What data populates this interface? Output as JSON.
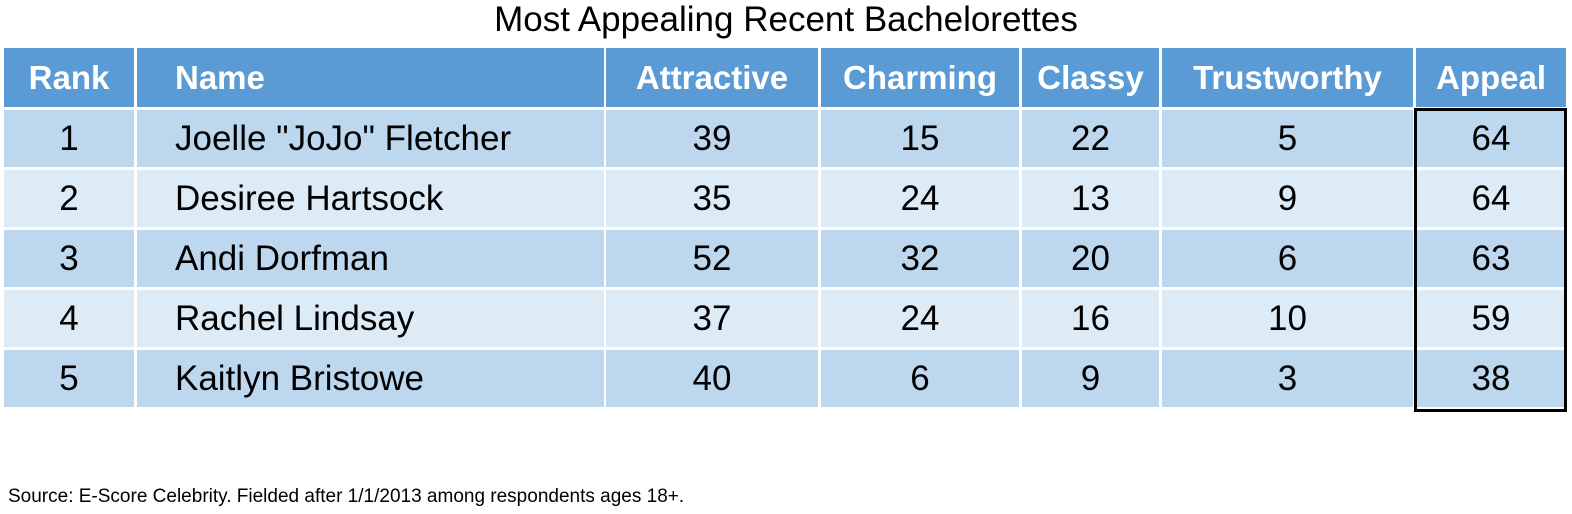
{
  "title": "Most Appealing Recent Bachelorettes",
  "table": {
    "header": [
      "Rank",
      "Name",
      "Attractive",
      "Charming",
      "Classy",
      "Trustworthy",
      "Appeal"
    ],
    "rows": [
      [
        1,
        "Joelle \"JoJo\" Fletcher",
        39,
        15,
        22,
        5,
        64
      ],
      [
        2,
        "Desiree Hartsock",
        35,
        24,
        13,
        9,
        64
      ],
      [
        3,
        "Andi Dorfman",
        52,
        32,
        20,
        6,
        63
      ],
      [
        4,
        "Rachel Lindsay",
        37,
        24,
        16,
        10,
        59
      ],
      [
        5,
        "Kaitlyn Bristowe",
        40,
        6,
        9,
        3,
        38
      ]
    ]
  },
  "source": "Source: E-Score Celebrity. Fielded after 1/1/2013 among respondents ages 18+."
}
